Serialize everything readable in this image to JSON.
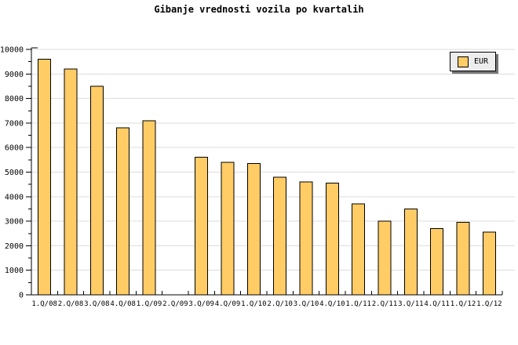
{
  "title": "Gibanje vrednosti vozila po kvartalih",
  "legend": {
    "label": "EUR"
  },
  "colors": {
    "background": "#FFFFFF",
    "bar_fill": "#FFCC66",
    "bar_stroke": "#000000",
    "grid": "#DDDDDD",
    "axis": "#000000",
    "tick_text": "#000000",
    "legend_bg": "#EDEDED",
    "legend_border": "#000000",
    "legend_shadow": "#777777"
  },
  "chart_data": {
    "type": "bar",
    "title": "Gibanje vrednosti vozila po kvartalih",
    "categories": [
      "1.Q/08",
      "2.Q/08",
      "3.Q/08",
      "4.Q/08",
      "1.Q/09",
      "2.Q/09",
      "3.Q/09",
      "4.Q/09",
      "1.Q/10",
      "2.Q/10",
      "3.Q/10",
      "4.Q/10",
      "1.Q/11",
      "2.Q/11",
      "3.Q/11",
      "4.Q/11",
      "1.Q/12",
      "1.Q/12"
    ],
    "series": [
      {
        "name": "EUR",
        "values": [
          9600,
          9200,
          8500,
          6800,
          7100,
          null,
          5600,
          5400,
          5350,
          4800,
          4600,
          4550,
          3700,
          3000,
          3500,
          2700,
          2950,
          2550
        ]
      }
    ],
    "xlabel": "",
    "ylabel": "",
    "ylim": [
      0,
      10000
    ],
    "ytick_major": 1000,
    "ytick_minor": 500,
    "grid": "horizontal-major",
    "legend_position": "top-right"
  }
}
